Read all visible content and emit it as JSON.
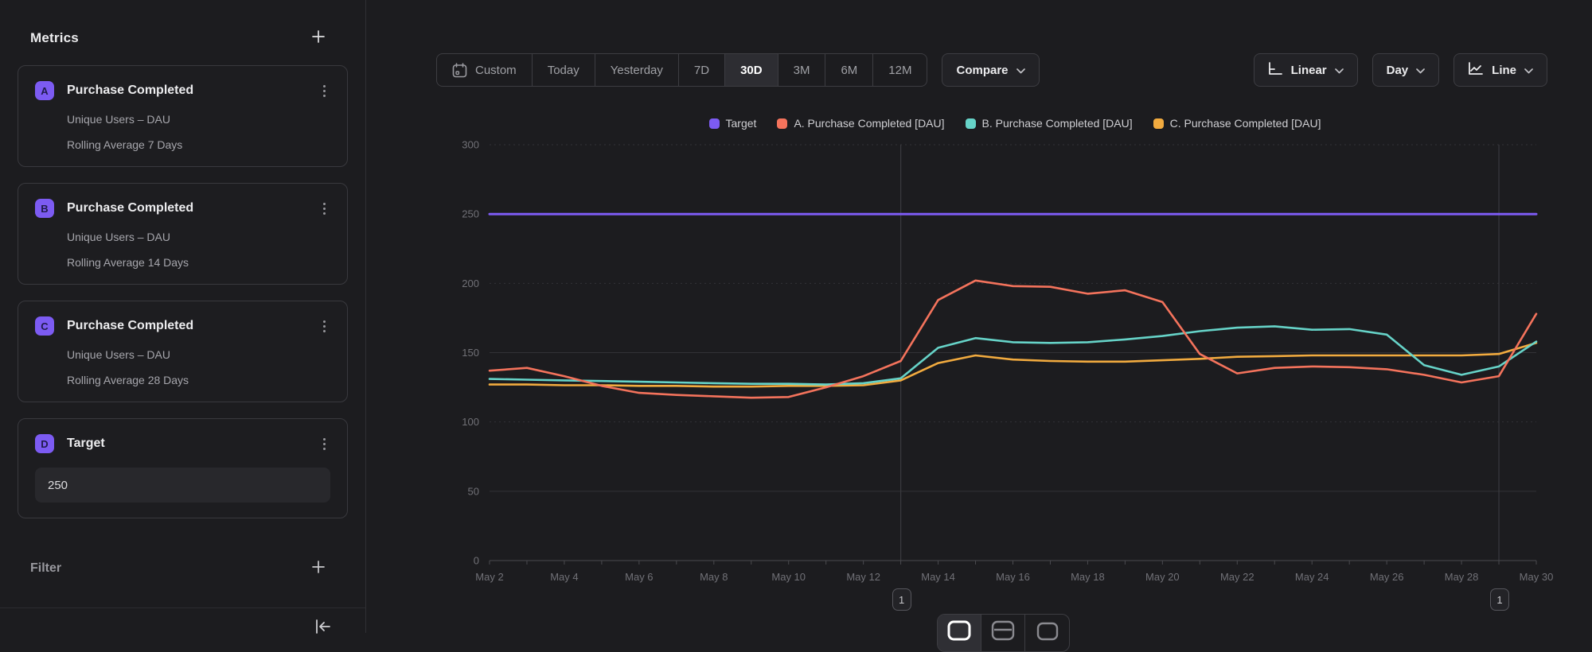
{
  "colors": {
    "background": "#1c1c1f",
    "accent_purple": "#7c5bf2",
    "series_orange": "#f4735c",
    "series_teal": "#66d3c8",
    "series_yellow": "#f2ab3f",
    "gridline": "#323237",
    "axis": "#4a4a4f",
    "annotation_line": "#3a3a3f"
  },
  "sidebar": {
    "title": "Metrics",
    "metrics": [
      {
        "letter": "A",
        "title": "Purchase Completed",
        "line1": "Unique Users – DAU",
        "line2": "Rolling Average 7 Days"
      },
      {
        "letter": "B",
        "title": "Purchase Completed",
        "line1": "Unique Users – DAU",
        "line2": "Rolling Average 14 Days"
      },
      {
        "letter": "C",
        "title": "Purchase Completed",
        "line1": "Unique Users – DAU",
        "line2": "Rolling Average 28 Days"
      }
    ],
    "target": {
      "letter": "D",
      "title": "Target",
      "value": "250"
    },
    "filter_label": "Filter"
  },
  "toolbar": {
    "ranges": [
      "Custom",
      "Today",
      "Yesterday",
      "7D",
      "30D",
      "3M",
      "6M",
      "12M"
    ],
    "active_range": "30D",
    "compare_label": "Compare",
    "scale_label": "Linear",
    "granularity_label": "Day",
    "chart_type_label": "Line"
  },
  "chart_data": {
    "type": "line",
    "title": "",
    "xlabel": "",
    "ylabel": "",
    "ylim": [
      0,
      300
    ],
    "yticks": [
      0,
      50,
      100,
      150,
      200,
      250,
      300
    ],
    "x_label_every": 2,
    "grid": true,
    "legend_position": "top",
    "x": [
      "May 2",
      "May 3",
      "May 4",
      "May 5",
      "May 6",
      "May 7",
      "May 8",
      "May 9",
      "May 10",
      "May 11",
      "May 12",
      "May 13",
      "May 14",
      "May 15",
      "May 16",
      "May 17",
      "May 18",
      "May 19",
      "May 20",
      "May 21",
      "May 22",
      "May 23",
      "May 24",
      "May 25",
      "May 26",
      "May 27",
      "May 28",
      "May 29",
      "May 30"
    ],
    "series": [
      {
        "name": "Target",
        "color": "#7c5bf2",
        "width": 3,
        "values": [
          250,
          250,
          250,
          250,
          250,
          250,
          250,
          250,
          250,
          250,
          250,
          250,
          250,
          250,
          250,
          250,
          250,
          250,
          250,
          250,
          250,
          250,
          250,
          250,
          250,
          250,
          250,
          250,
          250
        ]
      },
      {
        "name": "A. Purchase Completed [DAU]",
        "color": "#f4735c",
        "width": 2.6,
        "values": [
          137,
          139,
          133,
          126,
          121,
          119.5,
          118.5,
          117.5,
          118,
          125,
          133,
          144,
          188,
          202,
          198,
          197.5,
          192.5,
          195,
          186.5,
          149,
          135,
          139,
          140,
          139.5,
          138,
          134,
          128.5,
          133,
          178
        ]
      },
      {
        "name": "B. Purchase Completed [DAU]",
        "color": "#66d3c8",
        "width": 2.6,
        "values": [
          131,
          130.5,
          130,
          129.5,
          129,
          128.5,
          128,
          127.5,
          127.5,
          127,
          128,
          131.5,
          153.5,
          160.5,
          157.5,
          157,
          157.5,
          159.5,
          162,
          165.5,
          168,
          169,
          166.5,
          167,
          163,
          141,
          134,
          140,
          158
        ]
      },
      {
        "name": "C. Purchase Completed [DAU]",
        "color": "#f2ab3f",
        "width": 2.6,
        "values": [
          127,
          127,
          126.5,
          126.5,
          126,
          126,
          125.5,
          125.5,
          126,
          126,
          126.5,
          130,
          142.5,
          148,
          145,
          144,
          143.5,
          143.5,
          144.5,
          145.5,
          147,
          147.5,
          148,
          148,
          148,
          148,
          148,
          149,
          157
        ]
      }
    ],
    "draw_order": [
      0,
      3,
      2,
      1
    ],
    "annotations": [
      {
        "x": "May 13",
        "badge": "1"
      },
      {
        "x": "May 29",
        "badge": "1"
      }
    ]
  }
}
